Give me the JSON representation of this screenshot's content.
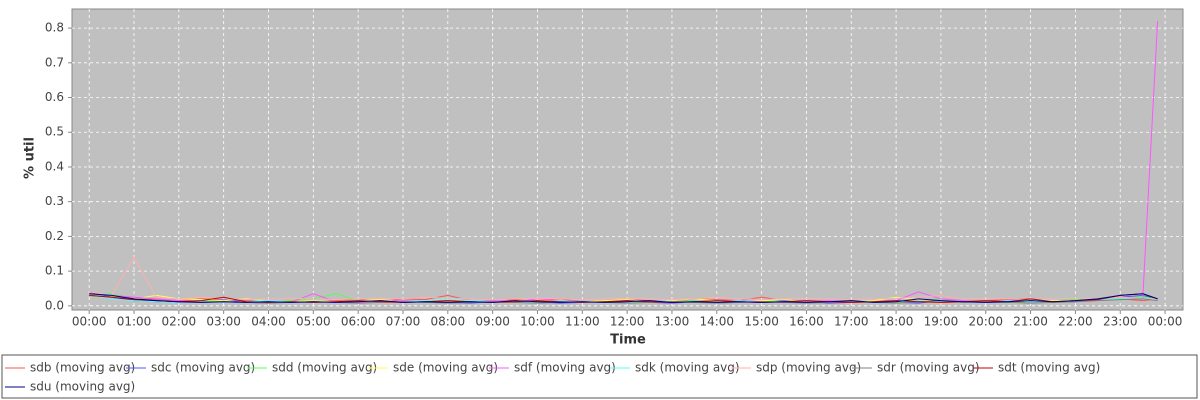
{
  "chart_data": {
    "type": "line",
    "xlabel": "Time",
    "ylabel": "% util",
    "x": [
      0,
      30,
      60,
      90,
      120,
      150,
      180,
      210,
      240,
      270,
      300,
      330,
      360,
      390,
      420,
      450,
      480,
      510,
      540,
      570,
      600,
      630,
      660,
      690,
      720,
      750,
      780,
      810,
      840,
      870,
      900,
      930,
      960,
      990,
      1020,
      1050,
      1080,
      1110,
      1140,
      1170,
      1200,
      1230,
      1260,
      1290,
      1320,
      1350,
      1380,
      1410,
      1430
    ],
    "xlim": [
      -23,
      1464
    ],
    "xticks": [
      {
        "value": 0,
        "label": "00:00"
      },
      {
        "value": 60,
        "label": "01:00"
      },
      {
        "value": 120,
        "label": "02:00"
      },
      {
        "value": 180,
        "label": "03:00"
      },
      {
        "value": 240,
        "label": "04:00"
      },
      {
        "value": 300,
        "label": "05:00"
      },
      {
        "value": 360,
        "label": "06:00"
      },
      {
        "value": 420,
        "label": "07:00"
      },
      {
        "value": 480,
        "label": "08:00"
      },
      {
        "value": 540,
        "label": "09:00"
      },
      {
        "value": 600,
        "label": "10:00"
      },
      {
        "value": 660,
        "label": "11:00"
      },
      {
        "value": 720,
        "label": "12:00"
      },
      {
        "value": 780,
        "label": "13:00"
      },
      {
        "value": 840,
        "label": "14:00"
      },
      {
        "value": 900,
        "label": "15:00"
      },
      {
        "value": 960,
        "label": "16:00"
      },
      {
        "value": 1020,
        "label": "17:00"
      },
      {
        "value": 1080,
        "label": "18:00"
      },
      {
        "value": 1140,
        "label": "19:00"
      },
      {
        "value": 1200,
        "label": "20:00"
      },
      {
        "value": 1260,
        "label": "21:00"
      },
      {
        "value": 1320,
        "label": "22:00"
      },
      {
        "value": 1380,
        "label": "23:00"
      },
      {
        "value": 1440,
        "label": "00:00"
      }
    ],
    "ylim": [
      -0.012,
      0.855
    ],
    "yticks": [
      {
        "value": 0,
        "label": "0.0"
      },
      0.1,
      0.2,
      0.3,
      0.4,
      0.5,
      0.6,
      0.7,
      0.8
    ],
    "grid": true,
    "legend": "bottom",
    "series": [
      {
        "name": "sdb (moving avg)",
        "color": "#ff5555",
        "values": [
          0.035,
          0.03,
          0.02,
          0.018,
          0.015,
          0.02,
          0.017,
          0.015,
          0.012,
          0.01,
          0.012,
          0.015,
          0.02,
          0.012,
          0.02,
          0.018,
          0.03,
          0.015,
          0.012,
          0.018,
          0.015,
          0.02,
          0.012,
          0.015,
          0.018,
          0.015,
          0.012,
          0.02,
          0.018,
          0.015,
          0.025,
          0.015,
          0.012,
          0.01,
          0.015,
          0.012,
          0.012,
          0.015,
          0.01,
          0.012,
          0.015,
          0.018,
          0.02,
          0.012,
          0.015,
          0.018,
          0.02,
          0.015,
          0.02
        ]
      },
      {
        "name": "sdc (moving avg)",
        "color": "#5555ff",
        "values": [
          0.04,
          0.025,
          0.015,
          0.012,
          0.01,
          0.012,
          0.018,
          0.01,
          0.008,
          0.012,
          0.01,
          0.012,
          0.008,
          0.015,
          0.01,
          0.012,
          0.01,
          0.008,
          0.012,
          0.01,
          0.012,
          0.008,
          0.01,
          0.012,
          0.015,
          0.01,
          0.008,
          0.012,
          0.01,
          0.012,
          0.01,
          0.015,
          0.012,
          0.008,
          0.01,
          0.012,
          0.01,
          0.008,
          0.015,
          0.012,
          0.01,
          0.012,
          0.015,
          0.01,
          0.012,
          0.02,
          0.025,
          0.03,
          0.02
        ]
      },
      {
        "name": "sdd (moving avg)",
        "color": "#55ff55",
        "values": [
          0.03,
          0.035,
          0.02,
          0.015,
          0.012,
          0.015,
          0.012,
          0.01,
          0.012,
          0.015,
          0.02,
          0.035,
          0.015,
          0.012,
          0.01,
          0.012,
          0.015,
          0.012,
          0.01,
          0.012,
          0.015,
          0.012,
          0.01,
          0.015,
          0.012,
          0.01,
          0.012,
          0.015,
          0.01,
          0.012,
          0.015,
          0.012,
          0.01,
          0.012,
          0.015,
          0.012,
          0.01,
          0.012,
          0.02,
          0.015,
          0.012,
          0.01,
          0.012,
          0.015,
          0.018,
          0.02,
          0.022,
          0.025,
          0.02
        ]
      },
      {
        "name": "sde (moving avg)",
        "color": "#ffff55",
        "values": [
          0.03,
          0.025,
          0.02,
          0.03,
          0.02,
          0.018,
          0.015,
          0.02,
          0.015,
          0.012,
          0.015,
          0.012,
          0.015,
          0.018,
          0.012,
          0.015,
          0.02,
          0.015,
          0.012,
          0.015,
          0.018,
          0.015,
          0.012,
          0.015,
          0.018,
          0.012,
          0.015,
          0.02,
          0.015,
          0.012,
          0.015,
          0.018,
          0.012,
          0.015,
          0.012,
          0.015,
          0.025,
          0.018,
          0.015,
          0.012,
          0.015,
          0.012,
          0.018,
          0.015,
          0.015,
          0.02,
          0.025,
          0.02,
          0.018
        ]
      },
      {
        "name": "sdf (moving avg)",
        "color": "#ff55ff",
        "values": [
          0.035,
          0.03,
          0.025,
          0.02,
          0.015,
          0.012,
          0.01,
          0.012,
          0.015,
          0.01,
          0.035,
          0.012,
          0.01,
          0.012,
          0.015,
          0.012,
          0.01,
          0.012,
          0.015,
          0.012,
          0.02,
          0.015,
          0.012,
          0.01,
          0.012,
          0.015,
          0.012,
          0.01,
          0.012,
          0.015,
          0.012,
          0.01,
          0.012,
          0.015,
          0.012,
          0.01,
          0.015,
          0.04,
          0.02,
          0.015,
          0.012,
          0.015,
          0.012,
          0.01,
          0.015,
          0.02,
          0.025,
          0.02,
          0.82
        ]
      },
      {
        "name": "sdk (moving avg)",
        "color": "#55ffff",
        "values": [
          0.03,
          0.02,
          0.015,
          0.012,
          0.01,
          0.012,
          0.01,
          0.012,
          0.015,
          0.012,
          0.01,
          0.012,
          0.015,
          0.01,
          0.012,
          0.015,
          0.02,
          0.015,
          0.012,
          0.01,
          0.012,
          0.015,
          0.01,
          0.012,
          0.01,
          0.015,
          0.012,
          0.01,
          0.012,
          0.015,
          0.01,
          0.012,
          0.015,
          0.01,
          0.012,
          0.01,
          0.012,
          0.015,
          0.012,
          0.01,
          0.012,
          0.015,
          0.012,
          0.01,
          0.015,
          0.018,
          0.02,
          0.022,
          0.018
        ]
      },
      {
        "name": "sdp (moving avg)",
        "color": "#ffafaf",
        "values": [
          0.04,
          0.03,
          0.14,
          0.025,
          0.02,
          0.025,
          0.02,
          0.018,
          0.02,
          0.022,
          0.02,
          0.018,
          0.02,
          0.022,
          0.02,
          0.025,
          0.022,
          0.02,
          0.018,
          0.02,
          0.022,
          0.02,
          0.018,
          0.02,
          0.022,
          0.02,
          0.018,
          0.02,
          0.025,
          0.02,
          0.018,
          0.02,
          0.022,
          0.02,
          0.018,
          0.02,
          0.022,
          0.025,
          0.03,
          0.02,
          0.022,
          0.02,
          0.018,
          0.02,
          0.022,
          0.02,
          0.025,
          0.02,
          0.02
        ]
      },
      {
        "name": "sdr (moving avg)",
        "color": "#808080",
        "values": [
          0.03,
          0.025,
          0.02,
          0.015,
          0.012,
          0.01,
          0.012,
          0.01,
          0.008,
          0.01,
          0.012,
          0.01,
          0.008,
          0.01,
          0.012,
          0.01,
          0.008,
          0.01,
          0.012,
          0.01,
          0.008,
          0.01,
          0.012,
          0.01,
          0.008,
          0.01,
          0.012,
          0.01,
          0.008,
          0.01,
          0.012,
          0.01,
          0.008,
          0.01,
          0.012,
          0.01,
          0.008,
          0.012,
          0.015,
          0.01,
          0.012,
          0.01,
          0.008,
          0.01,
          0.012,
          0.015,
          0.018,
          0.02,
          0.015
        ]
      },
      {
        "name": "sdt (moving avg)",
        "color": "#c00000",
        "values": [
          0.03,
          0.025,
          0.018,
          0.015,
          0.012,
          0.015,
          0.025,
          0.012,
          0.01,
          0.012,
          0.01,
          0.012,
          0.015,
          0.012,
          0.01,
          0.012,
          0.015,
          0.012,
          0.01,
          0.012,
          0.015,
          0.012,
          0.01,
          0.012,
          0.015,
          0.012,
          0.01,
          0.012,
          0.015,
          0.012,
          0.01,
          0.012,
          0.015,
          0.012,
          0.01,
          0.012,
          0.015,
          0.012,
          0.01,
          0.012,
          0.015,
          0.012,
          0.02,
          0.012,
          0.015,
          0.018,
          0.03,
          0.035,
          0.02
        ]
      },
      {
        "name": "sdu (moving avg)",
        "color": "#000080",
        "values": [
          0.035,
          0.03,
          0.02,
          0.015,
          0.012,
          0.01,
          0.012,
          0.01,
          0.012,
          0.01,
          0.012,
          0.01,
          0.012,
          0.015,
          0.01,
          0.012,
          0.01,
          0.012,
          0.01,
          0.015,
          0.012,
          0.01,
          0.012,
          0.01,
          0.012,
          0.015,
          0.01,
          0.012,
          0.01,
          0.012,
          0.01,
          0.012,
          0.01,
          0.012,
          0.015,
          0.01,
          0.012,
          0.02,
          0.015,
          0.012,
          0.01,
          0.012,
          0.015,
          0.012,
          0.015,
          0.02,
          0.03,
          0.035,
          0.02
        ]
      }
    ]
  }
}
